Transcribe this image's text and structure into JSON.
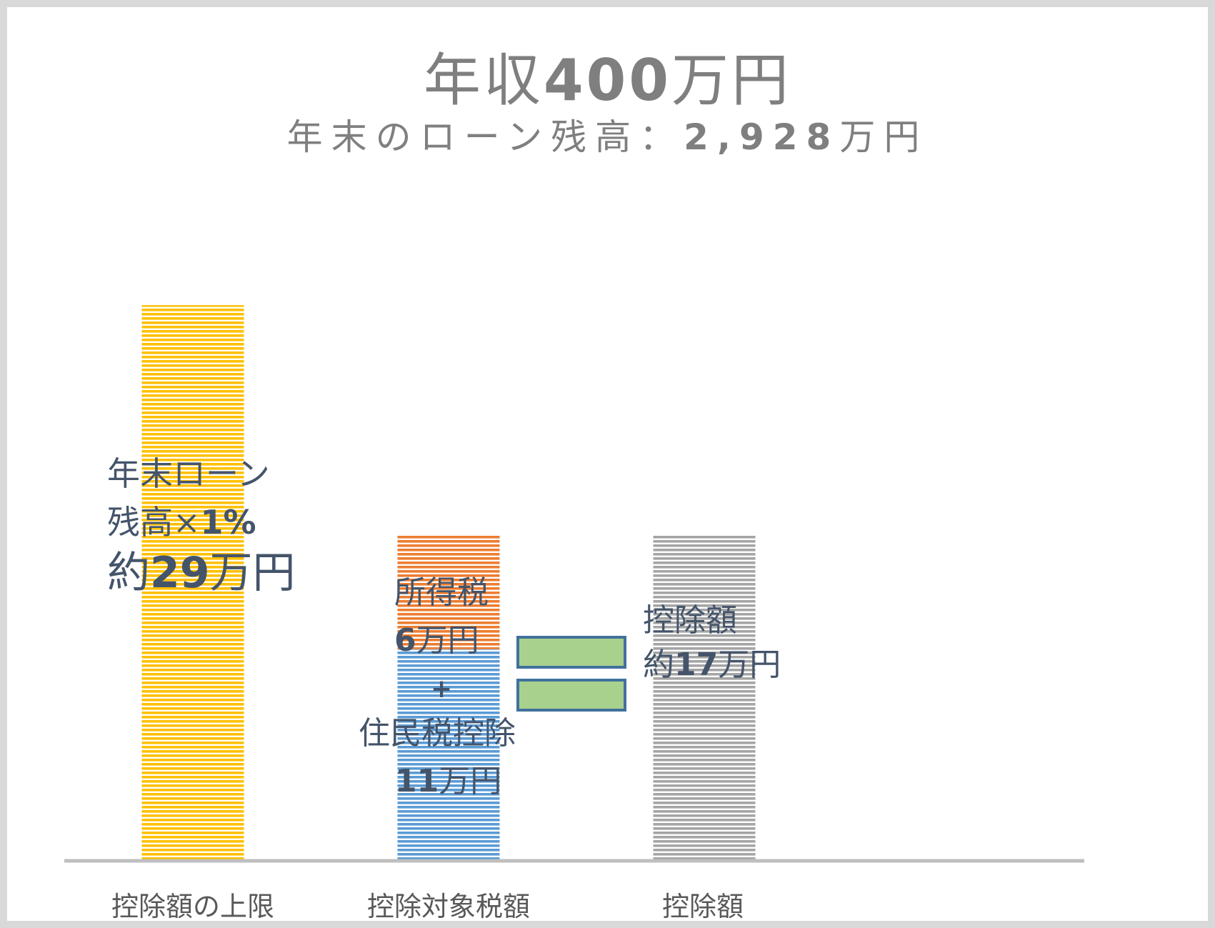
{
  "title": {
    "prefix": "年収",
    "amount": "400",
    "suffix": "万円"
  },
  "subtitle": {
    "prefix": "年末のローン残高：",
    "amount": "2,928",
    "suffix": "万円"
  },
  "chart_data": {
    "type": "bar",
    "stacked": true,
    "categories": [
      "控除額の上限",
      "控除対象税額",
      "控除額"
    ],
    "series": [
      {
        "values": [
          29,
          11,
          17
        ],
        "colors": [
          "#ffc000",
          "#5b9bd5",
          "#a5a5a5"
        ]
      },
      {
        "values": [
          0,
          6,
          0
        ],
        "colors": [
          "#ed7d31",
          "#ed7d31",
          "#ed7d31"
        ]
      }
    ],
    "ylim": [
      0,
      34.5
    ],
    "grid": false,
    "legend": "none",
    "fill_pattern": "horizontal-stripes"
  },
  "labels": {
    "cap": {
      "line1": "年末ローン",
      "line2_text": "残高×",
      "line2_pct": "1%",
      "line3_prefix": "約",
      "line3_num": "29",
      "line3_unit": "万円"
    },
    "income_tax": {
      "name": "所得税",
      "num": "6",
      "unit": "万円"
    },
    "plus": "+",
    "resident_tax": {
      "name": "住民税控除",
      "num": "11",
      "unit": "万円"
    },
    "deduction": {
      "name": "控除額",
      "prefix": "約",
      "num": "17",
      "unit": "万円"
    }
  },
  "equals_sign": {
    "fill": "#a9d18e",
    "stroke": "#41719c"
  }
}
